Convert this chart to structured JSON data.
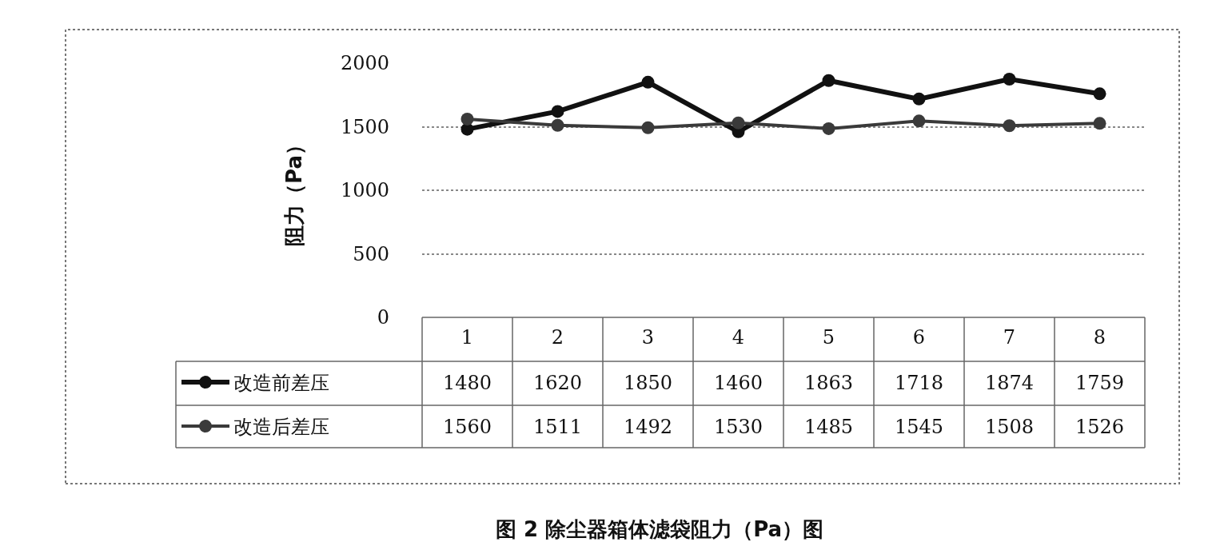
{
  "chart_data": {
    "type": "line",
    "title": "图 2 除尘器箱体滤袋阻力（Pa）图",
    "ylabel": "阻力（Pa）",
    "categories": [
      "1",
      "2",
      "3",
      "4",
      "5",
      "6",
      "7",
      "8"
    ],
    "series": [
      {
        "name": "改造前差压",
        "color": "#111111",
        "values": [
          1480,
          1620,
          1850,
          1460,
          1863,
          1718,
          1874,
          1759
        ]
      },
      {
        "name": "改造后差压",
        "color": "#3a3a3a",
        "values": [
          1560,
          1511,
          1492,
          1530,
          1485,
          1545,
          1508,
          1526
        ]
      }
    ],
    "ylim": [
      0,
      2000
    ],
    "yticks": [
      0,
      500,
      1000,
      1500,
      2000
    ],
    "grid": "y",
    "marker": "circle",
    "line_style": "solid",
    "legend": "bottom",
    "data_labels": true
  }
}
